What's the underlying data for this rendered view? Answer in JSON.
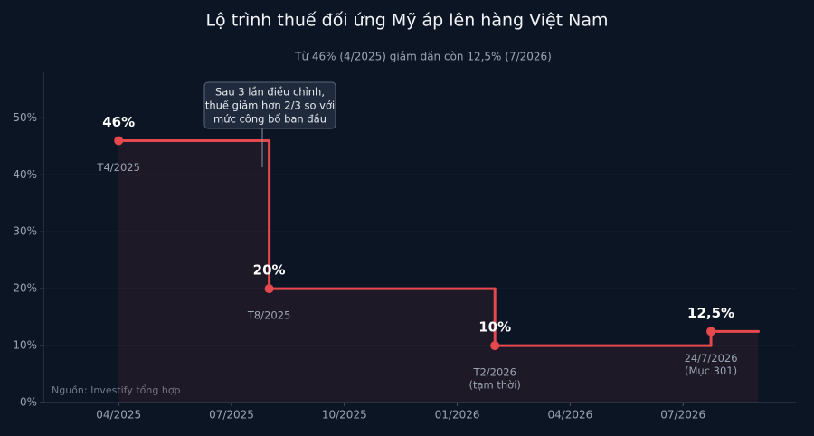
{
  "chart_data": {
    "type": "step",
    "title": "Lộ trình thuế đối ứng Mỹ áp lên hàng Việt Nam",
    "subtitle": "Từ 46% (4/2025) giảm dần còn 12,5% (7/2026)",
    "x": [
      "2025-04",
      "2025-08",
      "2026-02",
      "2026-07-24",
      "2026-09"
    ],
    "values": [
      46,
      20,
      10,
      12.5,
      12.5
    ],
    "value_labels": [
      "46%",
      "20%",
      "10%",
      "12,5%",
      null
    ],
    "point_labels": [
      [
        "T4/2025"
      ],
      [
        "T8/2025"
      ],
      [
        "T2/2026",
        "(tạm thời)"
      ],
      [
        "24/7/2026",
        "(Mục 301)"
      ],
      null
    ],
    "color": "#e5484d",
    "xlim": [
      "2025-02",
      "2026-10"
    ],
    "xticks": [
      {
        "value": "2025-04",
        "label": "04/2025"
      },
      {
        "value": "2025-07",
        "label": "07/2025"
      },
      {
        "value": "2025-10",
        "label": "10/2025"
      },
      {
        "value": "2026-01",
        "label": "01/2026"
      },
      {
        "value": "2026-04",
        "label": "04/2026"
      },
      {
        "value": "2026-07",
        "label": "07/2026"
      }
    ],
    "ylim": [
      0,
      58
    ],
    "yticks": [
      {
        "value": 0,
        "label": "0%"
      },
      {
        "value": 10,
        "label": "10%"
      },
      {
        "value": 20,
        "label": "20%"
      },
      {
        "value": 30,
        "label": "30%"
      },
      {
        "value": 40,
        "label": "40%"
      },
      {
        "value": 50,
        "label": "50%"
      }
    ],
    "grid": true,
    "annotation": [
      "Sau 3 lần điều chỉnh,",
      "thuế giảm hơn 2/3 so với",
      "mức công bố ban đầu"
    ],
    "source": "Nguồn: Investify tổng hợp"
  }
}
